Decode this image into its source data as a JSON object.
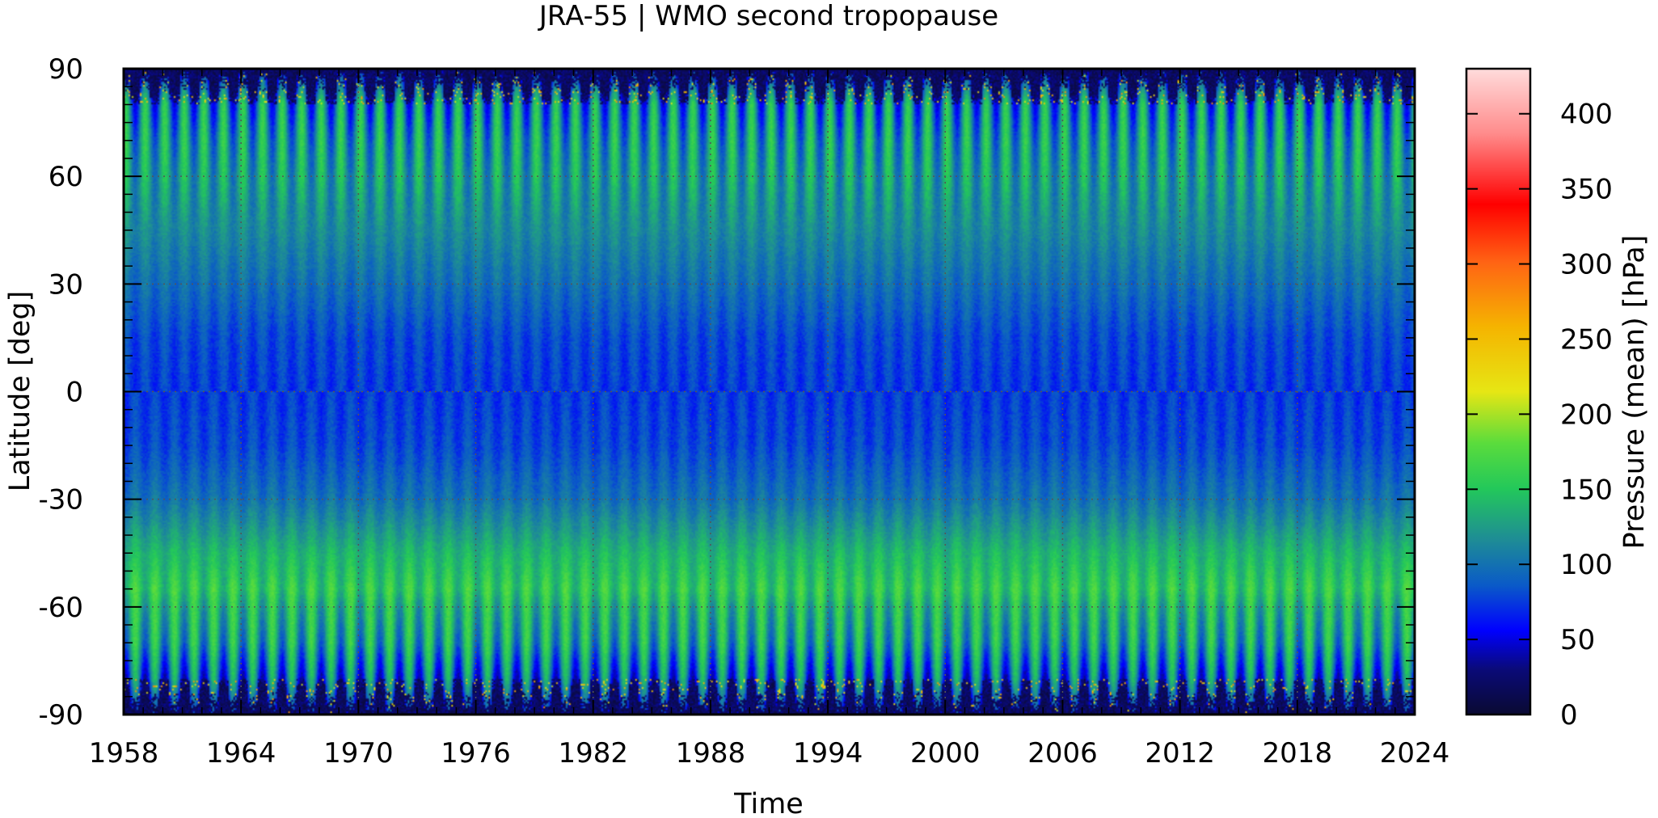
{
  "chart_data": {
    "type": "heatmap",
    "title": "JRA-55 | WMO second tropopause",
    "xlabel": "Time",
    "ylabel": "Latitude [deg]",
    "colorbar_label": "Pressure (mean) [hPa]",
    "xlim": [
      1958,
      2024
    ],
    "ylim": [
      -90,
      90
    ],
    "clim": [
      0,
      430
    ],
    "x_ticks": [
      "1958",
      "1964",
      "1970",
      "1976",
      "1982",
      "1988",
      "1994",
      "2000",
      "2006",
      "2012",
      "2018",
      "2024"
    ],
    "y_ticks": [
      "90",
      "60",
      "30",
      "0",
      "-30",
      "-60",
      "-90"
    ],
    "colorbar_ticks": [
      "400",
      "350",
      "300",
      "250",
      "200",
      "150",
      "100",
      "50",
      "0"
    ],
    "grid": true,
    "colormap": [
      "#0a0a32",
      "#0a0a78",
      "#0000ff",
      "#0a5ac8",
      "#1e8c96",
      "#23c85a",
      "#5adc3c",
      "#e6e614",
      "#f5b400",
      "#ff6414",
      "#ff0000",
      "#ff8c8c",
      "#ffdcdc"
    ],
    "zonal_mean_pressure_hpa": [
      {
        "lat": 90,
        "value": 15
      },
      {
        "lat": 80,
        "value": 105
      },
      {
        "lat": 70,
        "value": 120
      },
      {
        "lat": 60,
        "value": 125
      },
      {
        "lat": 45,
        "value": 115
      },
      {
        "lat": 30,
        "value": 98
      },
      {
        "lat": 15,
        "value": 80
      },
      {
        "lat": 0,
        "value": 75
      },
      {
        "lat": -15,
        "value": 80
      },
      {
        "lat": -30,
        "value": 100
      },
      {
        "lat": -45,
        "value": 140
      },
      {
        "lat": -55,
        "value": 155
      },
      {
        "lat": -60,
        "value": 140
      },
      {
        "lat": -70,
        "value": 125
      },
      {
        "lat": -80,
        "value": 90
      },
      {
        "lat": -90,
        "value": 20
      }
    ],
    "seasonal_cycle": "annual oscillation at all latitudes, strongest poleward of 60 degrees"
  }
}
